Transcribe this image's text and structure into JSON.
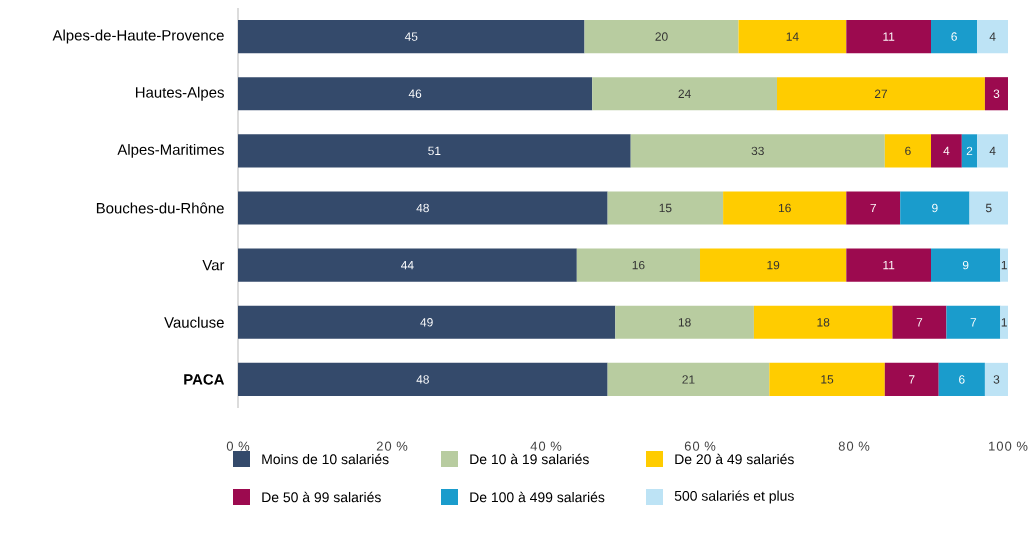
{
  "chart_data": {
    "type": "bar",
    "orientation": "horizontal",
    "stacked": true,
    "legend": "bottom",
    "grid": false,
    "categories": [
      "Alpes-de-Haute-Provence",
      "Hautes-Alpes",
      "Alpes-Maritimes",
      "Bouches-du-Rhône",
      "Var",
      "Vaucluse",
      "**PACA**"
    ],
    "xlim": [
      0,
      100
    ],
    "xticks": [
      {
        "value": 0,
        "label": "0 %"
      },
      {
        "value": 20,
        "label": "20 %"
      },
      {
        "value": 40,
        "label": "40 %"
      },
      {
        "value": 60,
        "label": "60 %"
      },
      {
        "value": 80,
        "label": "80 %"
      },
      {
        "value": 100,
        "label": "100 %"
      }
    ],
    "series": [
      {
        "name": "Moins de 10 salariés",
        "color": "#344a6b",
        "values": [
          45,
          46,
          51,
          48,
          44,
          49,
          48
        ],
        "value_labels": [
          "45",
          "46",
          "51",
          "48",
          "44",
          "49",
          "48"
        ]
      },
      {
        "name": "De 10 à 19 salariés",
        "color": "#b8cca0",
        "values": [
          20,
          24,
          33,
          15,
          16,
          18,
          21
        ],
        "value_labels": [
          "20",
          "24",
          "33",
          "15",
          "16",
          "18",
          "21"
        ]
      },
      {
        "name": "De 20 à 49 salariés",
        "color": "#ffcc00",
        "values": [
          14,
          27,
          6,
          16,
          19,
          18,
          15
        ],
        "value_labels": [
          "14",
          "27",
          "6",
          "16",
          "19",
          "18",
          "15"
        ]
      },
      {
        "name": "De 50 à 99 salariés",
        "color": "#9c0a4f",
        "values": [
          11,
          3,
          4,
          7,
          11,
          7,
          7
        ],
        "value_labels": [
          "11",
          "3",
          "4",
          "7",
          "11",
          "7",
          "7"
        ]
      },
      {
        "name": "De 100 à 499 salariés",
        "color": "#1a9ccc",
        "values": [
          6,
          null,
          2,
          9,
          9,
          7,
          6
        ],
        "value_labels": [
          "6",
          null,
          "2",
          "9",
          "9",
          "7",
          "6"
        ]
      },
      {
        "name": "500 salariés et plus",
        "color": "#bde3f5",
        "values": [
          4,
          null,
          4,
          5,
          1,
          1,
          3
        ],
        "value_labels": [
          "4",
          null,
          "4",
          "5",
          "1",
          "1",
          "3"
        ]
      }
    ]
  }
}
